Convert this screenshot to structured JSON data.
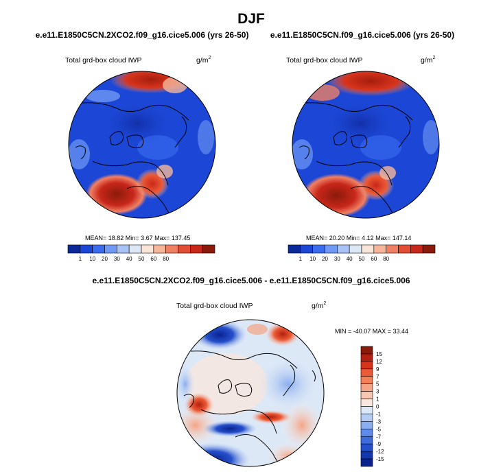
{
  "page": {
    "title": "DJF"
  },
  "chart_data": [
    {
      "type": "heatmap",
      "projection": "north-polar-stereographic",
      "title": "e.e11.E1850C5CN.2XCO2.f09_g16.cice5.006 (yrs 26-50)",
      "subtitle_left": "Total grd-box cloud IWP",
      "units": "g/m",
      "units_exp": "2",
      "stats": {
        "mean": "18.82",
        "min": "3.67",
        "max": "137.45"
      },
      "colorbar": {
        "orientation": "horizontal",
        "levels": [
          "1",
          "10",
          "20",
          "30",
          "40",
          "50",
          "60",
          "80"
        ],
        "colors": [
          "#0a2a9c",
          "#1c47d6",
          "#3b6cf0",
          "#6f99f4",
          "#a9c3f6",
          "#dde8f7",
          "#fbe4d8",
          "#f5b69a",
          "#ef8064",
          "#e24e33",
          "#c8271a",
          "#8a1a0a"
        ]
      }
    },
    {
      "type": "heatmap",
      "projection": "north-polar-stereographic",
      "title": "e.e11.E1850C5CN.f09_g16.cice5.006 (yrs 26-50)",
      "subtitle_left": "Total grd-box cloud IWP",
      "units": "g/m",
      "units_exp": "2",
      "stats": {
        "mean": "20.20",
        "min": "4.12",
        "max": "147.14"
      },
      "colorbar": {
        "orientation": "horizontal",
        "levels": [
          "1",
          "10",
          "20",
          "30",
          "40",
          "50",
          "60",
          "80"
        ],
        "colors": [
          "#0a2a9c",
          "#1c47d6",
          "#3b6cf0",
          "#6f99f4",
          "#a9c3f6",
          "#dde8f7",
          "#fbe4d8",
          "#f5b69a",
          "#ef8064",
          "#e24e33",
          "#c8271a",
          "#8a1a0a"
        ]
      }
    },
    {
      "type": "heatmap",
      "projection": "north-polar-stereographic",
      "title": "e.e11.E1850C5CN.2XCO2.f09_g16.cice5.006 - e.e11.E1850C5CN.f09_g16.cice5.006",
      "subtitle_left": "Total grd-box cloud IWP",
      "units": "g/m",
      "units_exp": "2",
      "stats_text": "MIN = -40.07  MAX =  33.44",
      "colorbar": {
        "orientation": "vertical",
        "levels": [
          "15",
          "12",
          "9",
          "7",
          "5",
          "3",
          "1",
          "0",
          "-1",
          "-3",
          "-5",
          "-7",
          "-9",
          "-12",
          "-15"
        ],
        "colors": [
          "#8a1a0a",
          "#b3200f",
          "#d8341c",
          "#ec5a35",
          "#f28158",
          "#f5a485",
          "#f7c7b2",
          "#f9e6dd",
          "#dde8f7",
          "#b4ccf4",
          "#8aaef0",
          "#5f8ce9",
          "#3d6ddc",
          "#2550cc",
          "#1236b0",
          "#0a2290"
        ]
      }
    }
  ]
}
